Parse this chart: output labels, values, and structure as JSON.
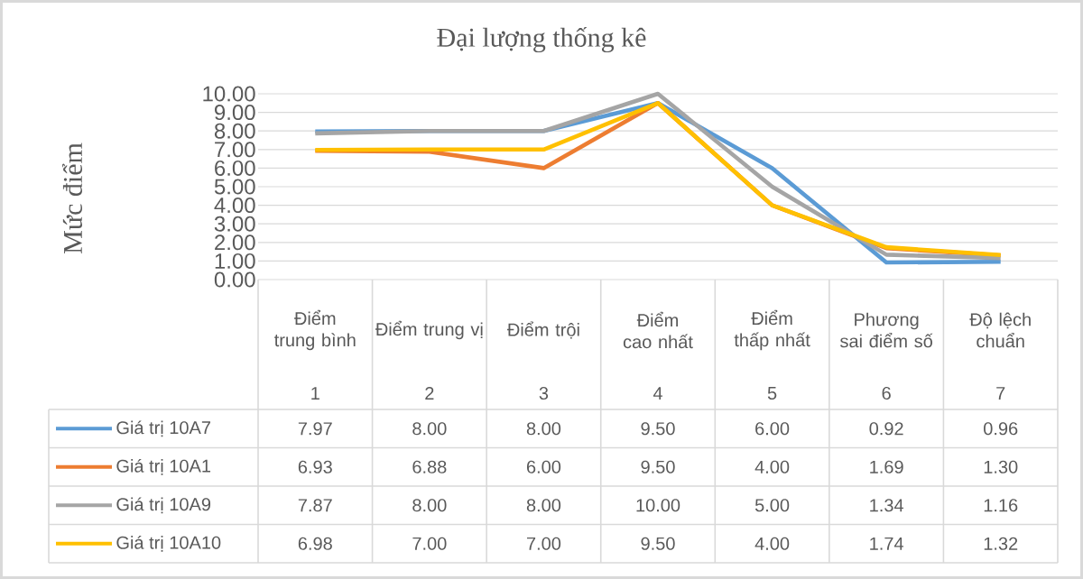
{
  "chart_data": {
    "type": "line",
    "title": "Đại lượng thống kê",
    "ylabel": "Mức điểm",
    "categories": [
      "Điểm trung bình",
      "Điểm trung vị",
      "Điểm trội",
      "Điểm cao nhất",
      "Điểm thấp nhất",
      "Phương sai điểm số",
      "Độ lệch chuẩn"
    ],
    "annotations": [
      "1",
      "2",
      "3",
      "4",
      "5",
      "6",
      "7"
    ],
    "series": [
      {
        "name": "Giá trị 10A7",
        "color": "#5b9bd5",
        "values": [
          7.97,
          8.0,
          8.0,
          9.5,
          6.0,
          0.92,
          0.96
        ],
        "value_labels": [
          "7.97",
          "8.00",
          "8.00",
          "9.50",
          "6.00",
          "0.92",
          "0.96"
        ]
      },
      {
        "name": "Giá trị 10A1",
        "color": "#ed7d31",
        "values": [
          6.93,
          6.88,
          6.0,
          9.5,
          4.0,
          1.69,
          1.3
        ],
        "value_labels": [
          "6.93",
          "6.88",
          "6.00",
          "9.50",
          "4.00",
          "1.69",
          "1.30"
        ]
      },
      {
        "name": "Giá trị 10A9",
        "color": "#a5a5a5",
        "values": [
          7.87,
          8.0,
          8.0,
          10.0,
          5.0,
          1.34,
          1.16
        ],
        "value_labels": [
          "7.87",
          "8.00",
          "8.00",
          "10.00",
          "5.00",
          "1.34",
          "1.16"
        ]
      },
      {
        "name": "Giá trị 10A10",
        "color": "#ffc000",
        "values": [
          6.98,
          7.0,
          7.0,
          9.5,
          4.0,
          1.74,
          1.32
        ],
        "value_labels": [
          "6.98",
          "7.00",
          "7.00",
          "9.50",
          "4.00",
          "1.74",
          "1.32"
        ]
      }
    ],
    "ylim": [
      0,
      10
    ],
    "yticks": [
      {
        "value": 0,
        "label": "0.00"
      },
      {
        "value": 1,
        "label": "1.00"
      },
      {
        "value": 2,
        "label": "2.00"
      },
      {
        "value": 3,
        "label": "3.00"
      },
      {
        "value": 4,
        "label": "4.00"
      },
      {
        "value": 5,
        "label": "5.00"
      },
      {
        "value": 6,
        "label": "6.00"
      },
      {
        "value": 7,
        "label": "7.00"
      },
      {
        "value": 8,
        "label": "8.00"
      },
      {
        "value": 9,
        "label": "9.00"
      },
      {
        "value": 10,
        "label": "10.00"
      }
    ],
    "grid": "y",
    "legend": "bottom left",
    "marker": "none",
    "line_style": "solid"
  }
}
